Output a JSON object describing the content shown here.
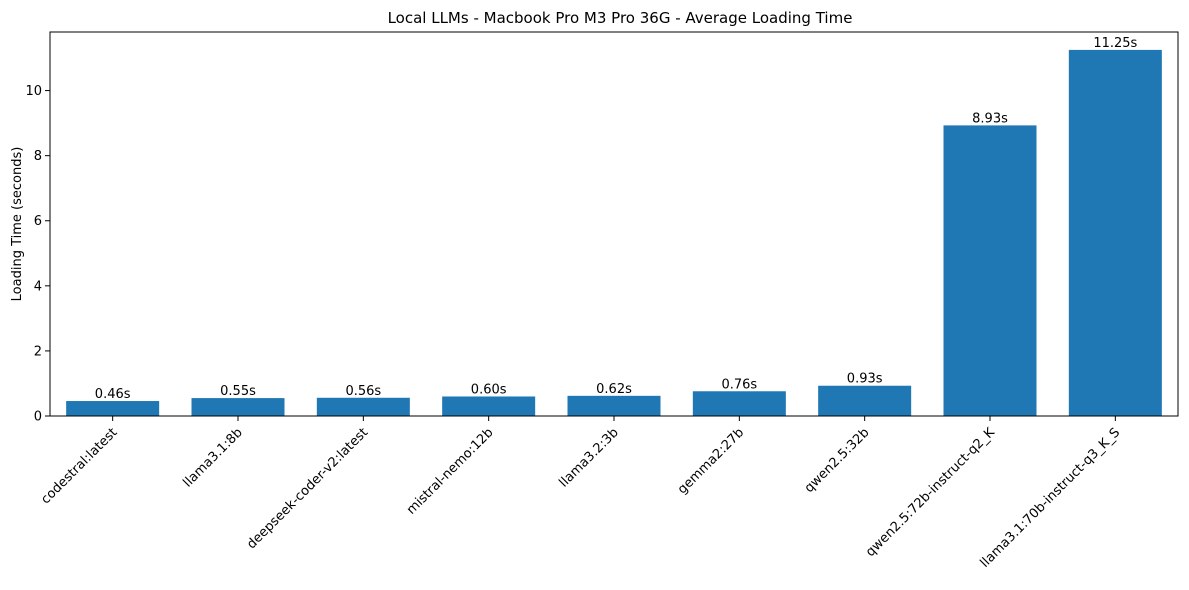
{
  "chart_data": {
    "type": "bar",
    "title": "Local LLMs - Macbook Pro M3 Pro 36G - Average Loading Time",
    "xlabel": "",
    "ylabel": "Loading Time (seconds)",
    "categories": [
      "codestral:latest",
      "llama3.1:8b",
      "deepseek-coder-v2:latest",
      "mistral-nemo:12b",
      "llama3.2:3b",
      "gemma2:27b",
      "qwen2.5:32b",
      "qwen2.5:72b-instruct-q2_K",
      "llama3.1:70b-instruct-q3_K_S"
    ],
    "values": [
      0.46,
      0.55,
      0.56,
      0.6,
      0.62,
      0.76,
      0.93,
      8.93,
      11.25
    ],
    "data_labels": [
      "0.46s",
      "0.55s",
      "0.56s",
      "0.60s",
      "0.62s",
      "0.76s",
      "0.93s",
      "8.93s",
      "11.25s"
    ],
    "ylim": [
      0,
      11.8
    ],
    "yticks": [
      0,
      2,
      4,
      6,
      8,
      10
    ],
    "ytick_labels": [
      "0",
      "2",
      "4",
      "6",
      "8",
      "10"
    ],
    "bar_color": "#1f77b4",
    "grid": false,
    "legend": "none"
  }
}
